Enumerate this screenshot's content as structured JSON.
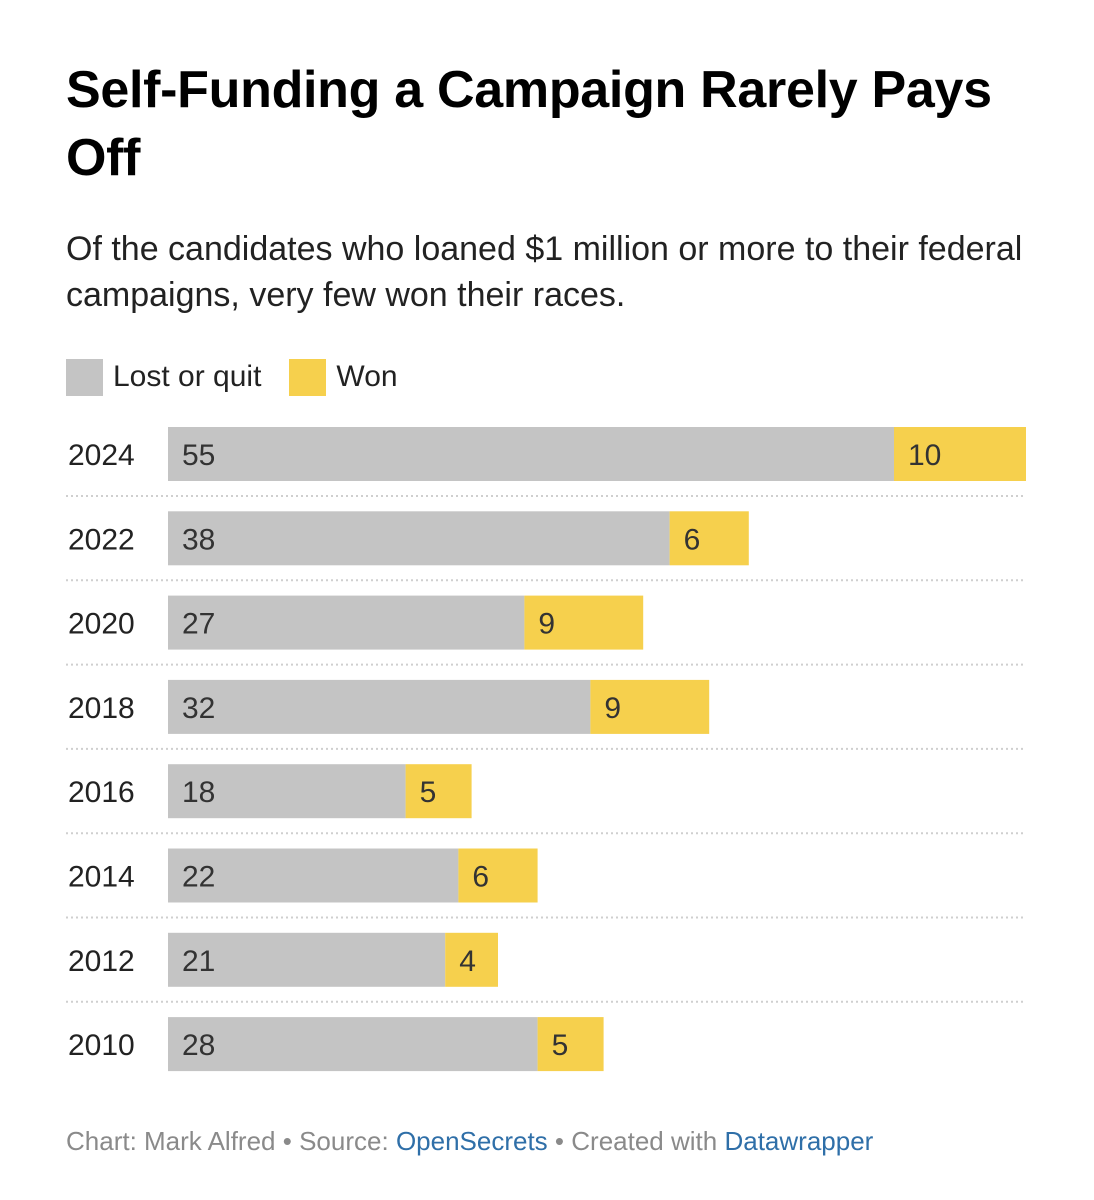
{
  "header": {
    "title": "Self-Funding a Campaign Rarely Pays Off",
    "subtitle": "Of the candidates who loaned $1 million or more to their federal campaigns, very few won their races."
  },
  "colors": {
    "lost": "#c4c4c4",
    "won": "#f6d04d",
    "gridline": "#cfcfcf",
    "link": "#2f6fa8"
  },
  "chart_data": {
    "type": "bar",
    "orientation": "horizontal",
    "stacked": true,
    "categories": [
      "2024",
      "2022",
      "2020",
      "2018",
      "2016",
      "2014",
      "2012",
      "2010"
    ],
    "series": [
      {
        "name": "Lost or quit",
        "values": [
          55,
          38,
          27,
          32,
          18,
          22,
          21,
          28
        ]
      },
      {
        "name": "Won",
        "values": [
          10,
          6,
          9,
          9,
          5,
          6,
          4,
          5
        ]
      }
    ],
    "xlim": [
      0,
      65
    ],
    "legend_position": "top-left",
    "data_labels": true
  },
  "footer": {
    "chart_label": "Chart: Mark Alfred",
    "separator": "•",
    "source_label": "Source:",
    "source_link": "OpenSecrets",
    "created_label": "Created with",
    "created_link": "Datawrapper"
  }
}
